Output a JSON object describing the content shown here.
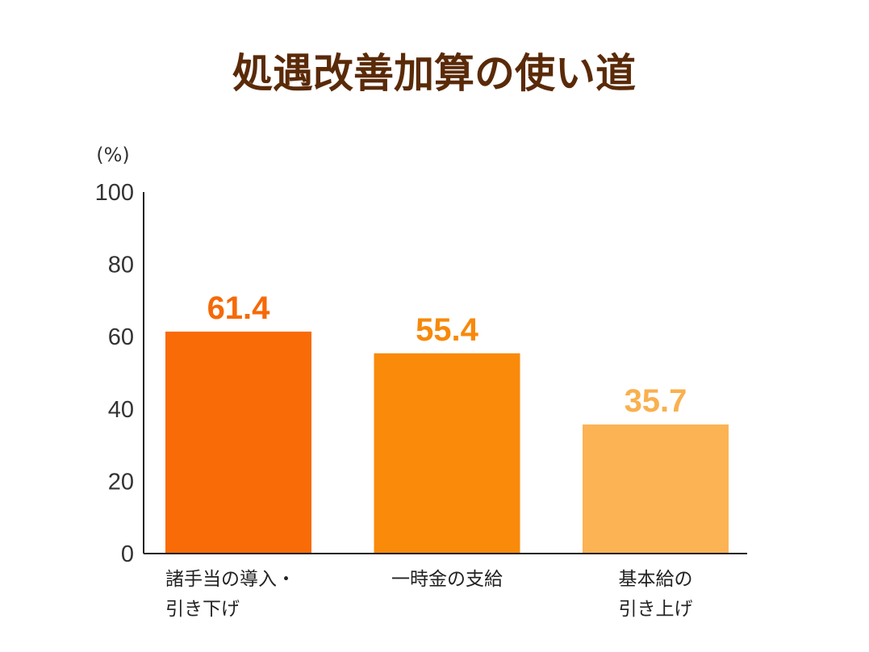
{
  "chart_data": {
    "type": "bar",
    "title": "処遇改善加算の使い道",
    "ylabel": "(%)",
    "xlabel": "",
    "ylim": [
      0,
      100
    ],
    "yticks": [
      0,
      20,
      40,
      60,
      80,
      100
    ],
    "categories": [
      [
        "諸手当の導入・",
        "引き下げ"
      ],
      [
        "一時金の支給"
      ],
      [
        "基本給の",
        "引き上げ"
      ]
    ],
    "values": [
      61.4,
      55.4,
      35.7
    ],
    "value_labels": [
      "61.4",
      "55.4",
      "35.7"
    ],
    "colors": [
      "#f96b06",
      "#f98a0a",
      "#fbb354"
    ],
    "label_colors": [
      "#f56a06",
      "#f7890a",
      "#f9b04e"
    ],
    "grid": false
  }
}
